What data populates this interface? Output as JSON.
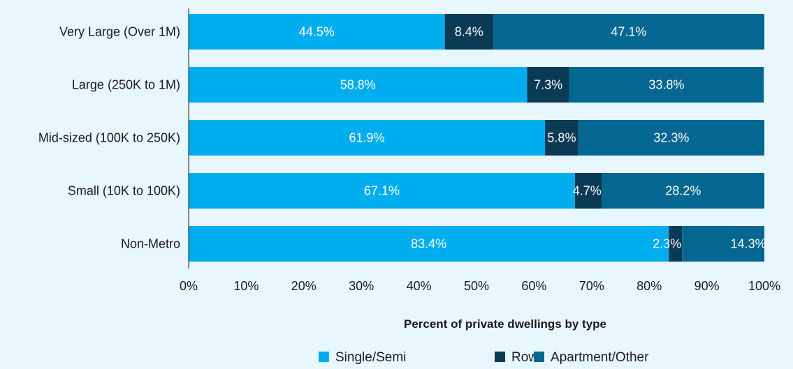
{
  "chart_data": {
    "type": "bar",
    "orientation": "horizontal",
    "stacked": true,
    "categories": [
      "Very Large (Over 1M)",
      "Large (250K to 1M)",
      "Mid-sized (100K to 250K)",
      "Small (10K to 100K)",
      "Non-Metro"
    ],
    "series": [
      {
        "name": "Single/Semi",
        "color": "#00adef",
        "values": [
          44.5,
          58.8,
          61.9,
          67.1,
          83.4
        ],
        "labels": [
          "44.5%",
          "58.8%",
          "61.9%",
          "67.1%",
          "83.4%"
        ]
      },
      {
        "name": "Row",
        "color": "#0b3a55",
        "values": [
          8.4,
          7.3,
          5.8,
          4.7,
          2.3
        ],
        "labels": [
          "8.4%",
          "7.3%",
          "5.8%",
          "4.7%",
          "2.3%"
        ]
      },
      {
        "name": "Apartment/Other",
        "color": "#046791",
        "values": [
          47.1,
          33.8,
          32.3,
          28.2,
          14.3
        ],
        "labels": [
          "47.1%",
          "33.8%",
          "32.3%",
          "28.2%",
          "14.3%"
        ]
      }
    ],
    "xlabel": "Percent of private dwellings by type",
    "xlim": [
      0,
      100
    ],
    "xticks": [
      "0%",
      "10%",
      "20%",
      "30%",
      "40%",
      "50%",
      "60%",
      "70%",
      "80%",
      "90%",
      "100%"
    ],
    "grid": false,
    "legend_position": "bottom-center",
    "background_color": "#e8f6fd"
  }
}
